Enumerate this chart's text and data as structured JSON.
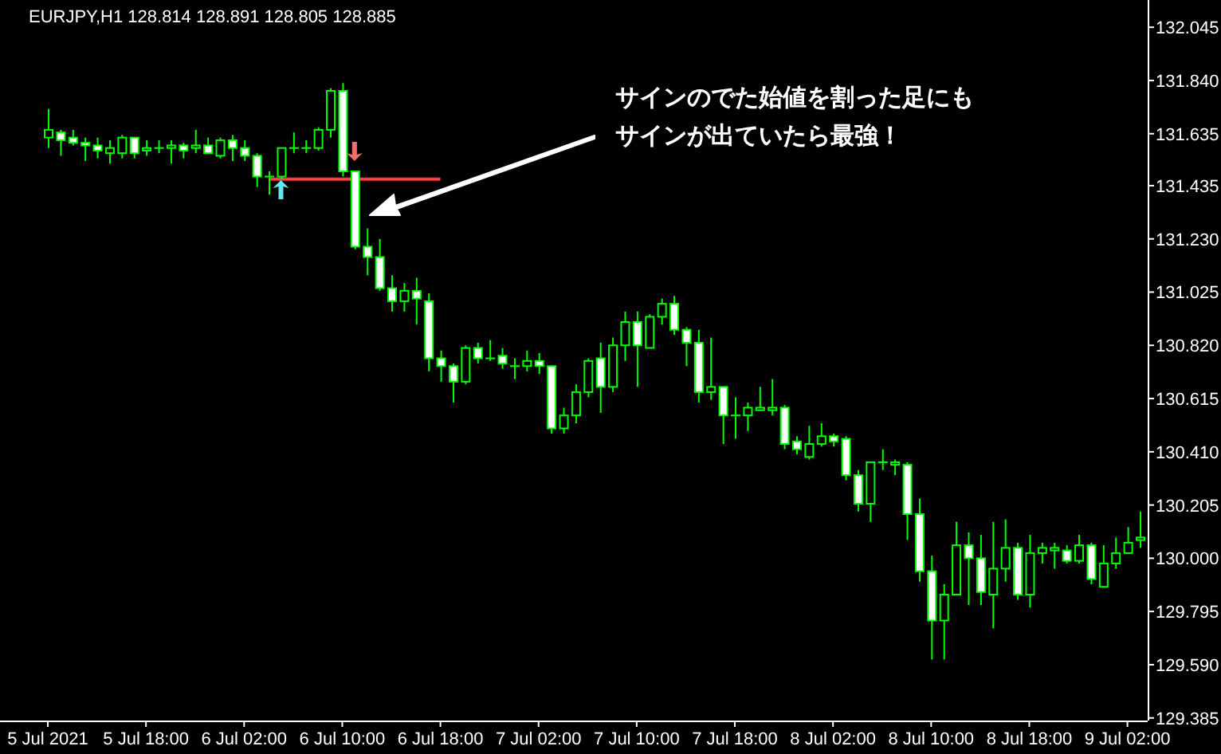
{
  "chart_data": {
    "type": "candlestick",
    "title": "EURJPY,H1  128.814 128.891 128.805 128.885",
    "annotations": [
      "サインのでた始値を割った足にも",
      "サインが出ていたら最強！"
    ],
    "categories": [
      "5 Jul 2021",
      null,
      null,
      null,
      null,
      null,
      null,
      null,
      "5 Jul 18:00",
      null,
      null,
      null,
      null,
      null,
      null,
      null,
      "6 Jul 02:00",
      null,
      null,
      null,
      null,
      null,
      null,
      null,
      "6 Jul 10:00",
      null,
      null,
      null,
      null,
      null,
      null,
      null,
      "6 Jul 18:00",
      null,
      null,
      null,
      null,
      null,
      null,
      null,
      "7 Jul 02:00",
      null,
      null,
      null,
      null,
      null,
      null,
      null,
      "7 Jul 10:00",
      null,
      null,
      null,
      null,
      null,
      null,
      null,
      "7 Jul 18:00",
      null,
      null,
      null,
      null,
      null,
      null,
      null,
      "8 Jul 02:00",
      null,
      null,
      null,
      null,
      null,
      null,
      null,
      "8 Jul 10:00",
      null,
      null,
      null,
      null,
      null,
      null,
      null,
      "8 Jul 18:00",
      null,
      null,
      null,
      null,
      null,
      null,
      null,
      "9 Jul 02:00",
      null
    ],
    "ylim": [
      129.375,
      132.15
    ],
    "yticks": [
      132.045,
      {
        "value": 131.84,
        "label": "131.840"
      },
      131.635,
      131.435,
      {
        "value": 131.23,
        "label": "131.230"
      },
      131.025,
      {
        "value": 130.82,
        "label": "130.820"
      },
      130.615,
      {
        "value": 130.41,
        "label": "130.410"
      },
      130.205,
      {
        "value": 130,
        "label": "130.000"
      },
      129.795,
      {
        "value": 129.59,
        "label": "129.590"
      },
      129.385
    ],
    "grid": false,
    "series": [
      {
        "type": "line",
        "color": "#ff3b3b",
        "values": [
          null,
          null,
          null,
          null,
          null,
          null,
          null,
          null,
          null,
          null,
          null,
          null,
          null,
          null,
          null,
          null,
          null,
          null,
          131.46,
          131.46,
          131.46,
          131.46,
          131.46,
          131.46,
          131.46,
          131.46,
          131.46,
          131.46,
          131.46,
          131.46,
          131.46,
          131.46,
          131.46,
          null,
          null,
          null,
          null,
          null,
          null,
          null,
          null,
          null,
          null,
          null,
          null,
          null,
          null,
          null,
          null,
          null,
          null,
          null,
          null,
          null,
          null,
          null,
          null,
          null,
          null,
          null,
          null,
          null,
          null,
          null,
          null,
          null,
          null,
          null,
          null,
          null,
          null,
          null,
          null,
          null,
          null,
          null,
          null,
          null,
          null,
          null,
          null,
          null,
          null,
          null,
          null,
          null,
          null,
          null,
          null,
          null
        ]
      },
      {
        "type": "candlestick",
        "color": "#00ff00",
        "ohlc": [
          [
            131.62,
            131.73,
            131.58,
            131.65
          ],
          [
            131.64,
            131.65,
            131.55,
            131.61
          ],
          [
            131.62,
            131.65,
            131.59,
            131.6
          ],
          [
            131.6,
            131.62,
            131.53,
            131.59
          ],
          [
            131.59,
            131.62,
            131.54,
            131.57
          ],
          [
            131.56,
            131.61,
            131.52,
            131.58
          ],
          [
            131.56,
            131.63,
            131.54,
            131.62
          ],
          [
            131.62,
            131.62,
            131.54,
            131.56
          ],
          [
            131.57,
            131.61,
            131.55,
            131.58
          ],
          [
            131.58,
            131.61,
            131.56,
            131.58
          ],
          [
            131.58,
            131.61,
            131.52,
            131.59
          ],
          [
            131.59,
            131.6,
            131.54,
            131.57
          ],
          [
            131.58,
            131.65,
            131.56,
            131.59
          ],
          [
            131.59,
            131.62,
            131.56,
            131.56
          ],
          [
            131.55,
            131.62,
            131.54,
            131.61
          ],
          [
            131.61,
            131.63,
            131.53,
            131.58
          ],
          [
            131.58,
            131.61,
            131.53,
            131.55
          ],
          [
            131.55,
            131.56,
            131.43,
            131.47
          ],
          [
            131.47,
            131.49,
            131.4,
            131.47
          ],
          [
            131.47,
            131.58,
            131.46,
            131.58
          ],
          [
            131.58,
            131.64,
            131.56,
            131.58
          ],
          [
            131.58,
            131.61,
            131.56,
            131.58
          ],
          [
            131.58,
            131.66,
            131.57,
            131.65
          ],
          [
            131.65,
            131.81,
            131.62,
            131.8
          ],
          [
            131.8,
            131.83,
            131.47,
            131.49
          ],
          [
            131.49,
            131.49,
            131.19,
            131.2
          ],
          [
            131.2,
            131.27,
            131.09,
            131.16
          ],
          [
            131.16,
            131.23,
            131.03,
            131.04
          ],
          [
            131.04,
            131.09,
            130.95,
            130.99
          ],
          [
            130.99,
            131.06,
            130.95,
            131.03
          ],
          [
            131.03,
            131.08,
            130.9,
            131.0
          ],
          [
            130.99,
            131.02,
            130.72,
            130.77
          ],
          [
            130.77,
            130.8,
            130.68,
            130.74
          ],
          [
            130.74,
            130.75,
            130.6,
            130.68
          ],
          [
            130.68,
            130.82,
            130.67,
            130.81
          ],
          [
            130.81,
            130.83,
            130.75,
            130.77
          ],
          [
            130.77,
            130.84,
            130.76,
            130.77
          ],
          [
            130.78,
            130.81,
            130.73,
            130.75
          ],
          [
            130.74,
            130.77,
            130.69,
            130.74
          ],
          [
            130.74,
            130.8,
            130.72,
            130.76
          ],
          [
            130.76,
            130.79,
            130.71,
            130.74
          ],
          [
            130.74,
            130.74,
            130.48,
            130.5
          ],
          [
            130.5,
            130.58,
            130.48,
            130.55
          ],
          [
            130.55,
            130.67,
            130.52,
            130.64
          ],
          [
            130.64,
            130.77,
            130.62,
            130.76
          ],
          [
            130.77,
            130.83,
            130.56,
            130.66
          ],
          [
            130.66,
            130.85,
            130.64,
            130.82
          ],
          [
            130.82,
            130.95,
            130.76,
            130.91
          ],
          [
            130.91,
            130.95,
            130.66,
            130.82
          ],
          [
            130.81,
            130.94,
            130.81,
            130.93
          ],
          [
            130.93,
            131.0,
            130.9,
            130.98
          ],
          [
            130.98,
            131.01,
            130.86,
            130.88
          ],
          [
            130.88,
            130.89,
            130.74,
            130.83
          ],
          [
            130.83,
            130.88,
            130.6,
            130.64
          ],
          [
            130.64,
            130.85,
            130.61,
            130.66
          ],
          [
            130.66,
            130.66,
            130.44,
            130.55
          ],
          [
            130.55,
            130.62,
            130.46,
            130.55
          ],
          [
            130.55,
            130.6,
            130.49,
            130.58
          ],
          [
            130.57,
            130.66,
            130.57,
            130.58
          ],
          [
            130.57,
            130.69,
            130.55,
            130.58
          ],
          [
            130.58,
            130.59,
            130.42,
            130.44
          ],
          [
            130.45,
            130.47,
            130.4,
            130.42
          ],
          [
            130.39,
            130.51,
            130.38,
            130.44
          ],
          [
            130.44,
            130.52,
            130.43,
            130.47
          ],
          [
            130.47,
            130.48,
            130.43,
            130.45
          ],
          [
            130.46,
            130.47,
            130.3,
            130.32
          ],
          [
            130.32,
            130.34,
            130.18,
            130.21
          ],
          [
            130.21,
            130.37,
            130.14,
            130.37
          ],
          [
            130.37,
            130.42,
            130.34,
            130.37
          ],
          [
            130.36,
            130.38,
            130.32,
            130.37
          ],
          [
            130.36,
            130.37,
            130.07,
            130.17
          ],
          [
            130.17,
            130.23,
            129.91,
            129.95
          ],
          [
            129.95,
            130.01,
            129.61,
            129.76
          ],
          [
            129.76,
            129.9,
            129.61,
            129.86
          ],
          [
            129.86,
            130.14,
            129.86,
            130.05
          ],
          [
            130.05,
            130.1,
            129.82,
            130.0
          ],
          [
            130.0,
            130.09,
            129.82,
            129.87
          ],
          [
            129.86,
            130.14,
            129.73,
            129.96
          ],
          [
            129.96,
            130.15,
            129.91,
            130.04
          ],
          [
            130.04,
            130.06,
            129.84,
            129.86
          ],
          [
            129.86,
            130.09,
            129.81,
            130.02
          ],
          [
            130.02,
            130.06,
            129.98,
            130.04
          ],
          [
            130.03,
            130.06,
            129.96,
            130.04
          ],
          [
            130.03,
            130.05,
            129.98,
            129.99
          ],
          [
            129.99,
            130.09,
            129.98,
            130.05
          ],
          [
            130.05,
            130.06,
            129.9,
            129.92
          ],
          [
            129.89,
            130.05,
            129.89,
            129.98
          ],
          [
            129.98,
            130.08,
            129.96,
            130.02
          ],
          [
            130.02,
            130.12,
            130.02,
            130.06
          ],
          [
            130.07,
            130.18,
            130.04,
            130.08
          ]
        ]
      }
    ]
  }
}
